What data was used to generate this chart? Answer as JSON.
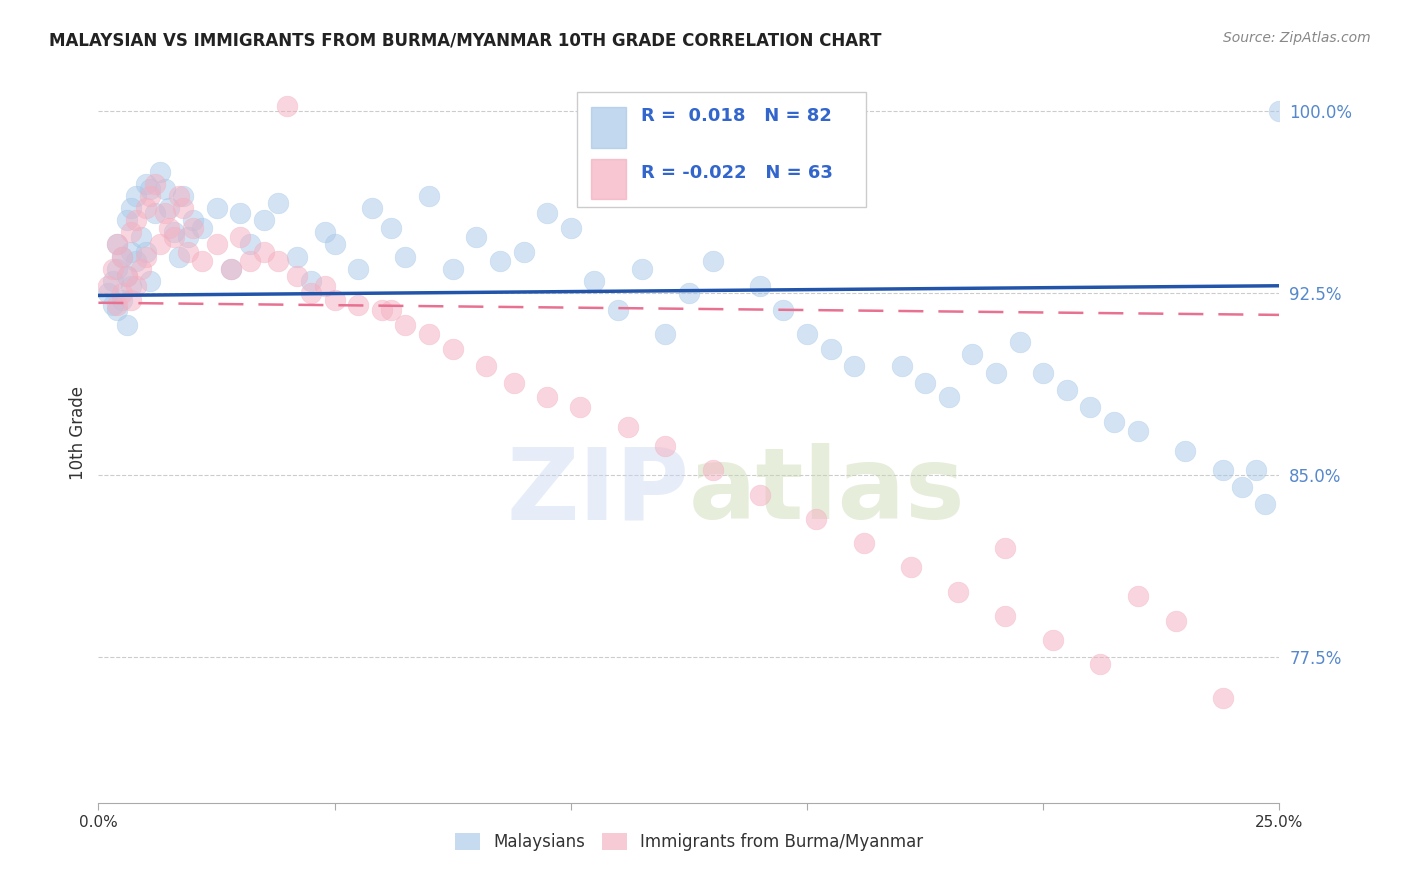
{
  "title": "MALAYSIAN VS IMMIGRANTS FROM BURMA/MYANMAR 10TH GRADE CORRELATION CHART",
  "source": "Source: ZipAtlas.com",
  "ylabel": "10th Grade",
  "x_min": 0.0,
  "x_max": 0.25,
  "y_min": 0.715,
  "y_max": 1.02,
  "yticks": [
    0.775,
    0.85,
    0.925,
    1.0
  ],
  "ytick_labels": [
    "77.5%",
    "85.0%",
    "92.5%",
    "100.0%"
  ],
  "xticks": [
    0.0,
    0.05,
    0.1,
    0.15,
    0.2,
    0.25
  ],
  "xtick_labels": [
    "0.0%",
    "",
    "",
    "",
    "",
    "25.0%"
  ],
  "blue_R": 0.018,
  "blue_N": 82,
  "pink_R": -0.022,
  "pink_N": 63,
  "blue_color": "#a8c8e8",
  "pink_color": "#f4afc0",
  "blue_line_color": "#2255aa",
  "pink_line_color": "#e87090",
  "legend_label_blue": "Malaysians",
  "legend_label_pink": "Immigrants from Burma/Myanmar",
  "watermark": "ZIPatlas",
  "background_color": "#ffffff",
  "blue_trend_x0": 0.0,
  "blue_trend_y0": 0.924,
  "blue_trend_x1": 0.25,
  "blue_trend_y1": 0.928,
  "pink_trend_x0": 0.0,
  "pink_trend_y0": 0.921,
  "pink_trend_x1": 0.25,
  "pink_trend_y1": 0.916
}
